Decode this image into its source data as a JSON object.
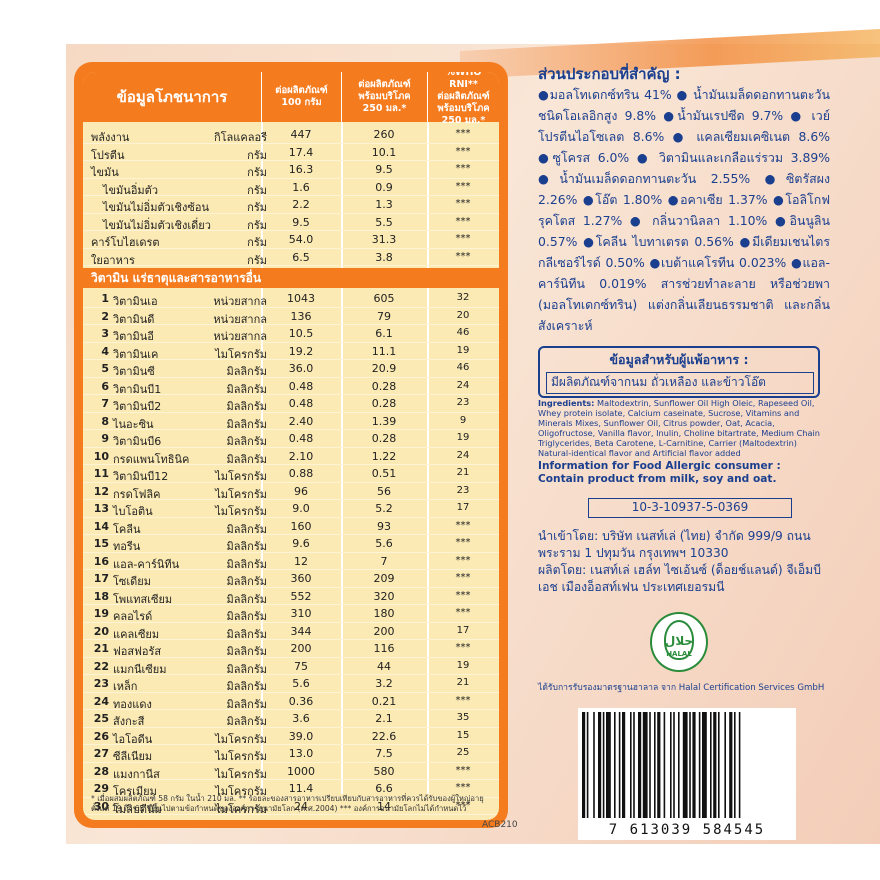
{
  "header": {
    "title": "ข้อมูลโภชนาการ",
    "col1": "ต่อผลิตภัณฑ์\n100 กรัม",
    "col2": "ต่อผลิตภัณฑ์\nพร้อมบริโภค\n250 มล.*",
    "col3": "%WHO RNI**\nต่อผลิตภัณฑ์\nพร้อมบริโภค 250 มล.*"
  },
  "macros": [
    {
      "name": "พลังงาน",
      "unit": "กิโลแคลอรี",
      "v1": "447",
      "v2": "260",
      "v3": "***"
    },
    {
      "name": "โปรตีน",
      "unit": "กรัม",
      "v1": "17.4",
      "v2": "10.1",
      "v3": "***"
    },
    {
      "name": "ไขมัน",
      "unit": "กรัม",
      "v1": "16.3",
      "v2": "9.5",
      "v3": "***"
    },
    {
      "name": "ไขมันอิ่มตัว",
      "unit": "กรัม",
      "v1": "1.6",
      "v2": "0.9",
      "v3": "***"
    },
    {
      "name": "ไขมันไม่อิ่มตัวเชิงซ้อน",
      "unit": "กรัม",
      "v1": "2.2",
      "v2": "1.3",
      "v3": "***"
    },
    {
      "name": "ไขมันไม่อิ่มตัวเชิงเดี่ยว",
      "unit": "กรัม",
      "v1": "9.5",
      "v2": "5.5",
      "v3": "***"
    },
    {
      "name": "คาร์โบไฮเดรต",
      "unit": "กรัม",
      "v1": "54.0",
      "v2": "31.3",
      "v3": "***"
    },
    {
      "name": "ใยอาหาร",
      "unit": "กรัม",
      "v1": "6.5",
      "v2": "3.8",
      "v3": "***"
    }
  ],
  "section_title": "วิตามิน แร่ธาตุและสารอาหารอื่น",
  "micros": [
    {
      "n": "1",
      "name": "วิตามินเอ",
      "unit": "หน่วยสากล",
      "v1": "1043",
      "v2": "605",
      "v3": "32"
    },
    {
      "n": "2",
      "name": "วิตามินดี",
      "unit": "หน่วยสากล",
      "v1": "136",
      "v2": "79",
      "v3": "20"
    },
    {
      "n": "3",
      "name": "วิตามินอี",
      "unit": "หน่วยสากล",
      "v1": "10.5",
      "v2": "6.1",
      "v3": "46"
    },
    {
      "n": "4",
      "name": "วิตามินเค",
      "unit": "ไมโครกรัม",
      "v1": "19.2",
      "v2": "11.1",
      "v3": "19"
    },
    {
      "n": "5",
      "name": "วิตามินซี",
      "unit": "มิลลิกรัม",
      "v1": "36.0",
      "v2": "20.9",
      "v3": "46"
    },
    {
      "n": "6",
      "name": "วิตามินบี1",
      "unit": "มิลลิกรัม",
      "v1": "0.48",
      "v2": "0.28",
      "v3": "24"
    },
    {
      "n": "7",
      "name": "วิตามินบี2",
      "unit": "มิลลิกรัม",
      "v1": "0.48",
      "v2": "0.28",
      "v3": "23"
    },
    {
      "n": "8",
      "name": "ไนอะซิน",
      "unit": "มิลลิกรัม",
      "v1": "2.40",
      "v2": "1.39",
      "v3": "9"
    },
    {
      "n": "9",
      "name": "วิตามินบี6",
      "unit": "มิลลิกรัม",
      "v1": "0.48",
      "v2": "0.28",
      "v3": "19"
    },
    {
      "n": "10",
      "name": "กรดแพนโทธินิค",
      "unit": "มิลลิกรัม",
      "v1": "2.10",
      "v2": "1.22",
      "v3": "24"
    },
    {
      "n": "11",
      "name": "วิตามินบี12",
      "unit": "ไมโครกรัม",
      "v1": "0.88",
      "v2": "0.51",
      "v3": "21"
    },
    {
      "n": "12",
      "name": "กรดโฟลิค",
      "unit": "ไมโครกรัม",
      "v1": "96",
      "v2": "56",
      "v3": "23"
    },
    {
      "n": "13",
      "name": "ไบโอติน",
      "unit": "ไมโครกรัม",
      "v1": "9.0",
      "v2": "5.2",
      "v3": "17"
    },
    {
      "n": "14",
      "name": "โคลีน",
      "unit": "มิลลิกรัม",
      "v1": "160",
      "v2": "93",
      "v3": "***"
    },
    {
      "n": "15",
      "name": "ทอรีน",
      "unit": "มิลลิกรัม",
      "v1": "9.6",
      "v2": "5.6",
      "v3": "***"
    },
    {
      "n": "16",
      "name": "แอล-คาร์นิทีน",
      "unit": "มิลลิกรัม",
      "v1": "12",
      "v2": "7",
      "v3": "***"
    },
    {
      "n": "17",
      "name": "โซเดียม",
      "unit": "มิลลิกรัม",
      "v1": "360",
      "v2": "209",
      "v3": "***"
    },
    {
      "n": "18",
      "name": "โพแทสเซียม",
      "unit": "มิลลิกรัม",
      "v1": "552",
      "v2": "320",
      "v3": "***"
    },
    {
      "n": "19",
      "name": "คลอไรด์",
      "unit": "มิลลิกรัม",
      "v1": "310",
      "v2": "180",
      "v3": "***"
    },
    {
      "n": "20",
      "name": "แคลเซียม",
      "unit": "มิลลิกรัม",
      "v1": "344",
      "v2": "200",
      "v3": "17"
    },
    {
      "n": "21",
      "name": "ฟอสฟอรัส",
      "unit": "มิลลิกรัม",
      "v1": "200",
      "v2": "116",
      "v3": "***"
    },
    {
      "n": "22",
      "name": "แมกนีเซียม",
      "unit": "มิลลิกรัม",
      "v1": "75",
      "v2": "44",
      "v3": "19"
    },
    {
      "n": "23",
      "name": "เหล็ก",
      "unit": "มิลลิกรัม",
      "v1": "5.6",
      "v2": "3.2",
      "v3": "21"
    },
    {
      "n": "24",
      "name": "ทองแดง",
      "unit": "มิลลิกรัม",
      "v1": "0.36",
      "v2": "0.21",
      "v3": "***"
    },
    {
      "n": "25",
      "name": "สังกะสี",
      "unit": "มิลลิกรัม",
      "v1": "3.6",
      "v2": "2.1",
      "v3": "35"
    },
    {
      "n": "26",
      "name": "ไอโอดีน",
      "unit": "ไมโครกรัม",
      "v1": "39.0",
      "v2": "22.6",
      "v3": "15"
    },
    {
      "n": "27",
      "name": "ซีลีเนียม",
      "unit": "ไมโครกรัม",
      "v1": "13.0",
      "v2": "7.5",
      "v3": "25"
    },
    {
      "n": "28",
      "name": "แมงกานีส",
      "unit": "ไมโครกรัม",
      "v1": "1000",
      "v2": "580",
      "v3": "***"
    },
    {
      "n": "29",
      "name": "โครเมียม",
      "unit": "ไมโครกรัม",
      "v1": "11.4",
      "v2": "6.6",
      "v3": "***"
    },
    {
      "n": "30",
      "name": "โมลิบดีนัม",
      "unit": "ไมโครกรัม",
      "v1": "24",
      "v2": "14",
      "v3": "***"
    }
  ],
  "footnote": "* เมื่อผสมผลิตภัณฑ์ 58 กรัม ในน้ำ 210 มล. ** ร้อยละของสารอาหารเปรียบเทียบกับสารอาหารที่ควรได้รับของผู้ใหญ่อายุตั้งแต่ 19 ถึง 65 ปีขึ้นไปตามข้อกำหนดขององค์การอนามัยโลก (ค.ศ.2004) *** องค์การอนามัยโลกไม่ได้กำหนดไว้",
  "panel_code": "ACB210",
  "ingredients_title": "ส่วนประกอบที่สำคัญ :",
  "ingredients_th": "●มอลโทเดกซ์ทริน 41% ● น้ำมันเมล็ดดอกทานตะวัน ชนิดโอเลอิกสูง 9.8% ●น้ำมันเรปซีด 9.7% ● เวย์โปรตีนไอโซเลต 8.6% ● แคลเซียมเคซิเนต 8.6% ●ซูโครส 6.0% ● วิตามินและเกลือแร่รวม 3.89% ●น้ำมันเมล็ดดอกทานตะวัน 2.55% ●ซิตรัสผง 2.26% ●โอ๊ต 1.80% ●อคาเซีย 1.37% ●โอลิโกฟรุคโตส 1.27% ● กลิ่นวานิลลา 1.10% ●อินนูลิน 0.57% ●โคลีน ไบทาเตรต 0.56% ●มีเดียมเชนไตรกลีเซอร์ไรด์ 0.50% ●เบต้าแคโรทีน 0.023% ●แอล-คาร์นิทีน 0.019% สารช่วยทำละลาย หรือช่วยพา (มอลโทเดกซ์ทริน) แต่งกลิ่นเลียนธรรมชาติ และกลิ่นสังเคราะห์",
  "allergy_title": "ข้อมูลสำหรับผู้แพ้อาหาร :",
  "allergy_text": "มีผลิตภัณฑ์จากนม ถั่วเหลือง และข้าวโอ๊ต",
  "ingredients_en_label": "Ingredients:",
  "ingredients_en": " Maltodextrin, Sunflower Oil High Oleic, Rapeseed Oil, Whey protein isolate, Calcium caseinate, Sucrose, Vitamins and Minerals Mixes, Sunflower Oil, Citrus powder, Oat, Acacia, Oligofructose, Vanilla flavor, Inulin, Choline bitartrate, Medium Chain Triglycerides, Beta Carotene, L-Carnitine, Carrier (Maltodextrin) Natural-identical flavor and Artificial flavor added",
  "allergy_en_title": "Information for Food Allergic consumer :",
  "allergy_en_text": "Contain product from milk, soy and oat.",
  "reg_number": "10-3-10937-5-0369",
  "importer": "นำเข้าโดย: บริษัท เนสท์เล่ (ไทย) จำกัด 999/9 ถนนพระราม 1 ปทุมวัน กรุงเทพฯ 10330",
  "manufacturer": "ผลิตโดย: เนสท์เล่ เฮล์ท ไซเอ้นซ์ (ด็อยช์แลนด์) จีเอ็มบีเอช เมืองอ็อสท์เฟน ประเทศเยอรมนี",
  "halal_arabic": "حلال",
  "halal_label": "HALAL",
  "halal_note": "ได้รับการรับรองมาตรฐานฮาลาล จาก Halal Certification Services GmbH",
  "barcode_number": "7 613039 584545",
  "colors": {
    "panel_orange": "#f57b1f",
    "panel_fill": "#fbeab4",
    "text_blue": "#1b3f8f",
    "halal_green": "#2a8c3a"
  }
}
